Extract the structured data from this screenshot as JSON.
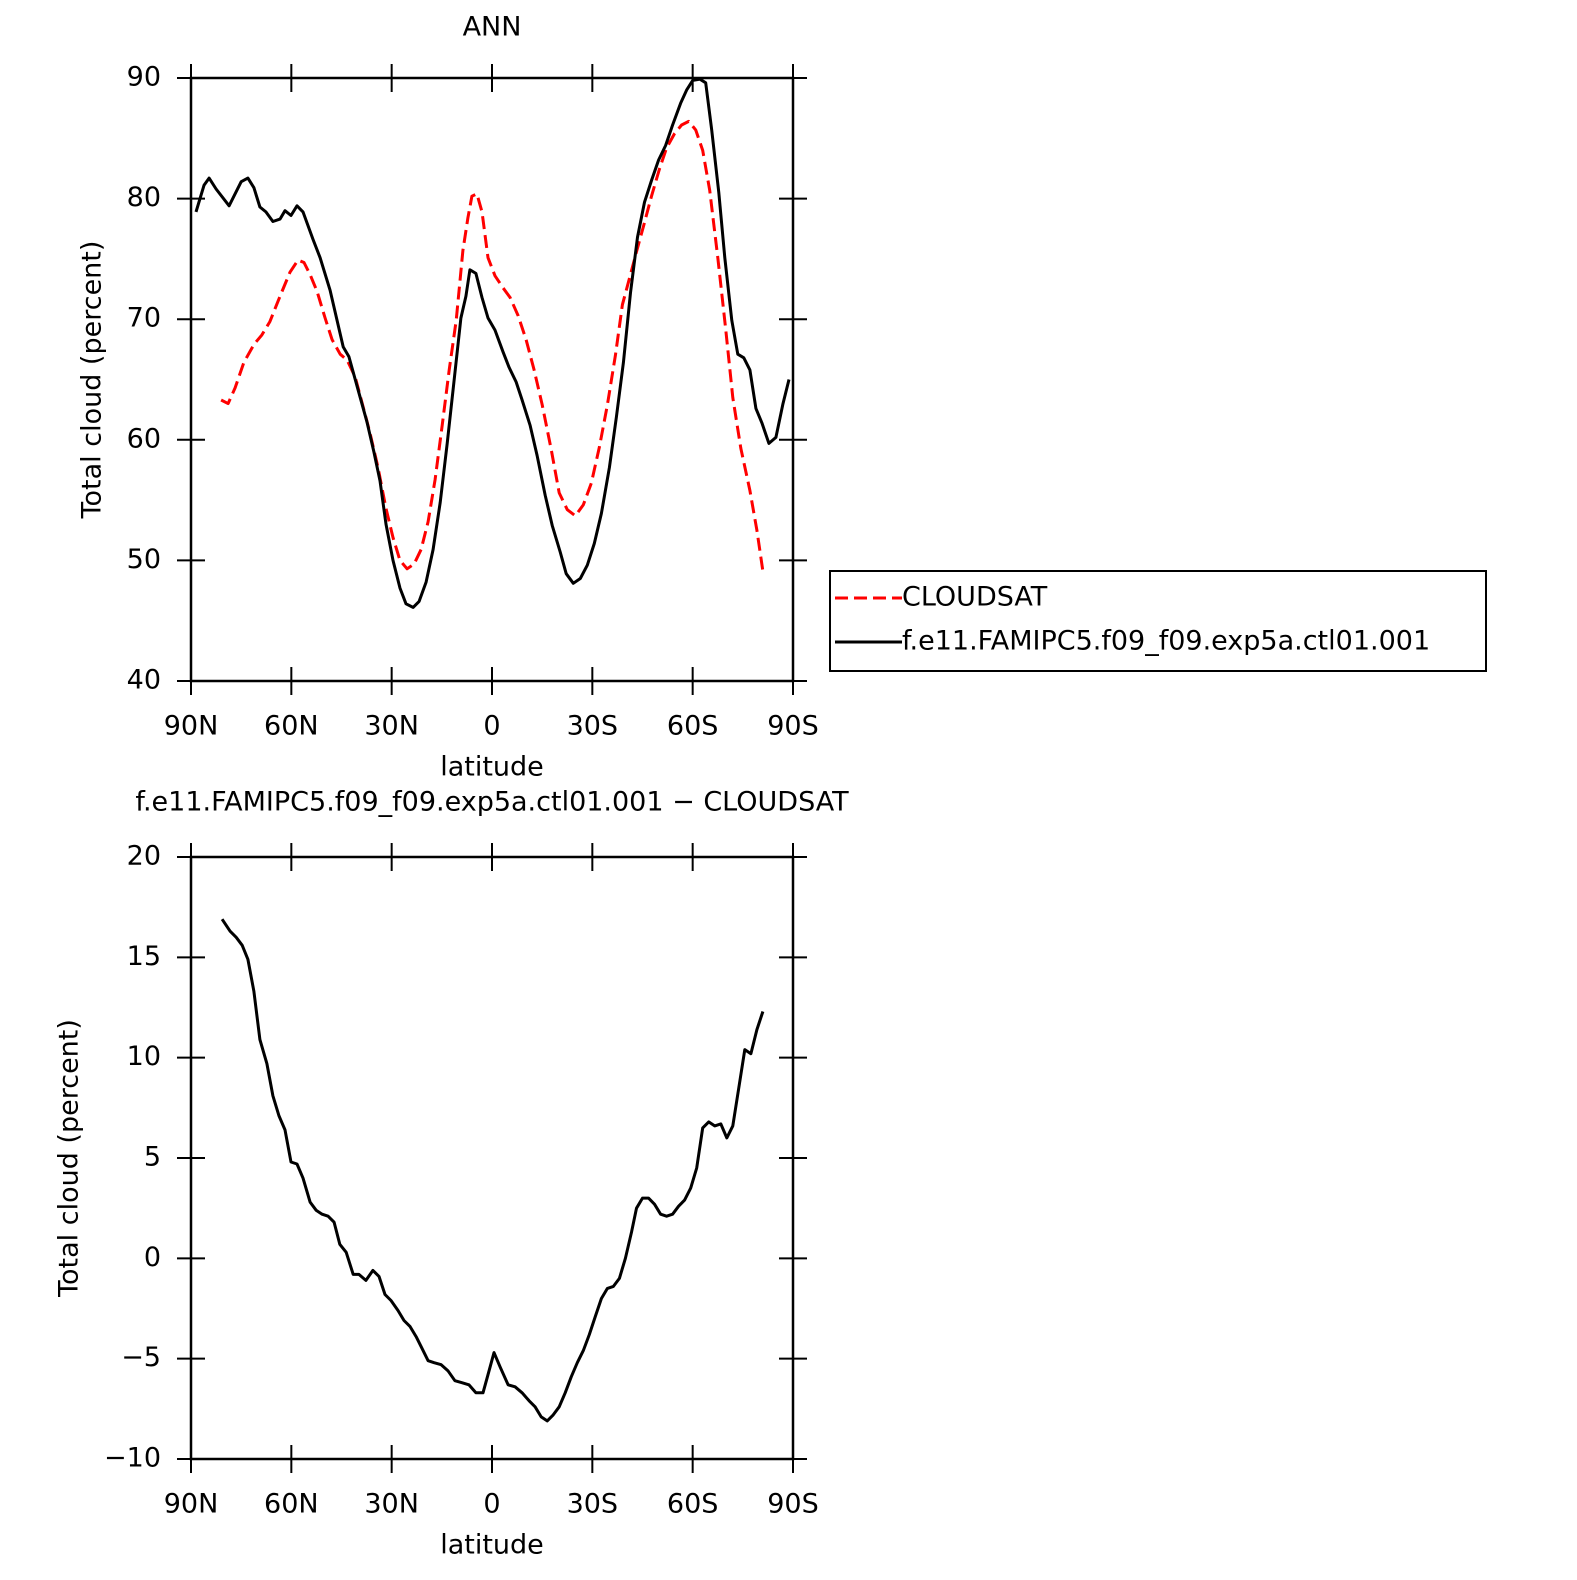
{
  "chart_data": [
    {
      "type": "line",
      "title": "ANN",
      "ylabel": "Total cloud (percent)",
      "xlabel": "latitude",
      "xlim": [
        90,
        -90
      ],
      "xticks": [
        {
          "value": 90,
          "label": "90N"
        },
        {
          "value": 60,
          "label": "60N"
        },
        {
          "value": 30,
          "label": "30N"
        },
        0,
        {
          "value": -30,
          "label": "30S"
        },
        {
          "value": -60,
          "label": "60S"
        },
        {
          "value": -90,
          "label": "90S"
        }
      ],
      "ylim": [
        40,
        90
      ],
      "yticks": [
        40,
        50,
        60,
        70,
        80,
        90
      ],
      "legend": "right",
      "series": [
        {
          "name": "CLOUDSAT",
          "color": "#ff0000",
          "line_style": "dashed",
          "x": [
            81.0,
            78.9,
            76.8,
            74.2,
            71.2,
            68.8,
            66.4,
            63.4,
            60.4,
            58.0,
            56.2,
            54.4,
            52.3,
            49.9,
            47.8,
            45.4,
            43.3,
            40.9,
            38.6,
            36.5,
            34.1,
            31.7,
            29.6,
            27.5,
            25.4,
            23.3,
            21.2,
            19.1,
            17.0,
            14.9,
            12.8,
            10.7,
            8.7,
            7.2,
            6.0,
            4.5,
            3.0,
            1.2,
            -0.9,
            -3.3,
            -5.4,
            -7.8,
            -10.2,
            -12.6,
            -15.0,
            -17.7,
            -20.1,
            -22.5,
            -24.9,
            -27.3,
            -29.7,
            -32.1,
            -34.5,
            -36.9,
            -39.0,
            -41.1,
            -43.2,
            -45.4,
            -47.7,
            -50.1,
            -52.2,
            -54.6,
            -56.7,
            -58.8,
            -60.9,
            -63.0,
            -65.1,
            -67.5,
            -69.9,
            -72.0,
            -74.4,
            -77.1,
            -79.2,
            -81.0
          ],
          "values": [
            63.3,
            63.0,
            64.3,
            66.4,
            67.9,
            68.7,
            69.8,
            71.9,
            73.9,
            74.9,
            74.7,
            73.7,
            72.3,
            70.1,
            68.3,
            67.1,
            66.6,
            65.2,
            62.8,
            60.6,
            57.7,
            54.3,
            51.9,
            50.0,
            49.3,
            49.7,
            50.9,
            53.2,
            56.7,
            61.2,
            65.8,
            69.9,
            75.7,
            78.4,
            80.2,
            80.4,
            78.9,
            75.1,
            73.6,
            72.6,
            71.8,
            70.3,
            68.3,
            65.8,
            62.9,
            59.2,
            55.6,
            54.2,
            53.7,
            54.6,
            56.4,
            59.4,
            62.9,
            67.0,
            71.2,
            73.4,
            75.6,
            77.8,
            80.2,
            82.5,
            84.2,
            85.4,
            86.1,
            86.4,
            85.7,
            84.0,
            80.7,
            75.1,
            69.1,
            63.5,
            59.3,
            55.8,
            52.5,
            49.1
          ]
        },
        {
          "name": "f.e11.FAMIPC5.f09_f09.exp5a.ctl01.001",
          "color": "#000000",
          "line_style": "solid",
          "x": [
            88.5,
            86.1,
            84.6,
            82.5,
            78.6,
            75.0,
            73.0,
            71.2,
            69.4,
            67.6,
            65.5,
            63.4,
            61.9,
            60.1,
            58.3,
            56.5,
            53.5,
            51.4,
            48.4,
            44.5,
            42.8,
            39.8,
            37.4,
            35.3,
            33.5,
            31.7,
            29.6,
            27.5,
            25.7,
            23.6,
            21.8,
            19.7,
            17.6,
            15.5,
            13.4,
            11.3,
            9.3,
            7.8,
            6.6,
            4.8,
            3.0,
            1.2,
            -0.9,
            -3.3,
            -5.1,
            -7.2,
            -9.0,
            -11.4,
            -13.5,
            -15.9,
            -18.0,
            -20.4,
            -22.2,
            -24.3,
            -26.4,
            -28.5,
            -30.6,
            -32.7,
            -35.1,
            -37.2,
            -39.3,
            -41.4,
            -43.5,
            -45.6,
            -47.7,
            -49.8,
            -51.9,
            -54.0,
            -56.4,
            -58.2,
            -60.0,
            -62.2,
            -63.9,
            -65.7,
            -67.8,
            -69.6,
            -71.7,
            -73.5,
            -75.3,
            -77.1,
            -78.9,
            -80.7,
            -82.8,
            -84.9,
            -87.0,
            -88.8
          ],
          "values": [
            78.9,
            81.1,
            81.7,
            80.8,
            79.4,
            81.4,
            81.7,
            80.9,
            79.3,
            78.9,
            78.1,
            78.3,
            79.0,
            78.6,
            79.4,
            78.9,
            76.6,
            75.1,
            72.4,
            67.7,
            66.9,
            63.9,
            61.5,
            59.0,
            56.6,
            53.0,
            50.0,
            47.7,
            46.4,
            46.1,
            46.6,
            48.2,
            50.9,
            54.8,
            59.7,
            65.0,
            70.1,
            71.9,
            74.1,
            73.8,
            71.8,
            70.1,
            69.1,
            67.3,
            66.0,
            64.8,
            63.3,
            61.2,
            58.7,
            55.4,
            52.9,
            50.7,
            48.9,
            48.1,
            48.5,
            49.6,
            51.4,
            53.9,
            57.7,
            61.9,
            66.4,
            72.2,
            76.8,
            79.7,
            81.5,
            83.2,
            84.4,
            86.1,
            87.9,
            89.0,
            89.8,
            89.9,
            89.6,
            85.7,
            80.5,
            75.1,
            69.9,
            67.1,
            66.8,
            65.8,
            62.6,
            61.4,
            59.7,
            60.2,
            63.0,
            65.0
          ]
        }
      ]
    },
    {
      "type": "line",
      "title": "f.e11.FAMIPC5.f09_f09.exp5a.ctl01.001 − CLOUDSAT",
      "ylabel": "Total cloud (percent)",
      "xlabel": "latitude",
      "xlim": [
        90,
        -90
      ],
      "xticks": [
        {
          "value": 90,
          "label": "90N"
        },
        {
          "value": 60,
          "label": "60N"
        },
        {
          "value": 30,
          "label": "30N"
        },
        0,
        {
          "value": -30,
          "label": "30S"
        },
        {
          "value": -60,
          "label": "60S"
        },
        {
          "value": -90,
          "label": "90S"
        }
      ],
      "ylim": [
        -10,
        20
      ],
      "yticks": [
        {
          "value": -10,
          "label": "−10"
        },
        {
          "value": -5,
          "label": "−5"
        },
        0,
        5,
        10,
        15,
        20
      ],
      "series": [
        {
          "color": "#000000",
          "line_style": "solid",
          "x": [
            80.7,
            78.3,
            76.5,
            74.7,
            73.0,
            71.2,
            69.4,
            67.3,
            65.5,
            63.7,
            61.9,
            60.1,
            58.3,
            56.5,
            54.4,
            52.6,
            50.8,
            49.0,
            47.2,
            45.5,
            43.6,
            41.5,
            39.8,
            37.7,
            35.6,
            33.8,
            32.0,
            30.2,
            28.1,
            26.3,
            24.5,
            22.7,
            20.9,
            19.1,
            17.3,
            15.2,
            13.2,
            11.1,
            9.0,
            6.9,
            4.8,
            2.7,
            1.2,
            -0.6,
            -2.4,
            -4.8,
            -6.9,
            -9.0,
            -11.1,
            -12.9,
            -14.7,
            -16.5,
            -18.3,
            -20.1,
            -21.9,
            -23.7,
            -25.5,
            -27.3,
            -29.1,
            -30.9,
            -32.7,
            -34.5,
            -36.3,
            -38.1,
            -39.9,
            -41.7,
            -43.2,
            -45.0,
            -46.8,
            -48.6,
            -50.4,
            -52.2,
            -54.0,
            -55.8,
            -57.6,
            -59.4,
            -61.2,
            -63.0,
            -64.8,
            -66.6,
            -68.4,
            -70.2,
            -72.0,
            -73.8,
            -75.6,
            -77.4,
            -79.2,
            -81.0
          ],
          "values": [
            16.9,
            16.3,
            16.0,
            15.6,
            14.9,
            13.3,
            10.9,
            9.7,
            8.1,
            7.1,
            6.4,
            4.8,
            4.7,
            4.0,
            2.8,
            2.4,
            2.2,
            2.1,
            1.8,
            0.7,
            0.3,
            -0.8,
            -0.8,
            -1.1,
            -0.6,
            -0.9,
            -1.8,
            -2.1,
            -2.6,
            -3.1,
            -3.4,
            -3.9,
            -4.5,
            -5.1,
            -5.2,
            -5.3,
            -5.6,
            -6.1,
            -6.2,
            -6.3,
            -6.7,
            -6.7,
            -5.8,
            -4.7,
            -5.4,
            -6.3,
            -6.4,
            -6.7,
            -7.1,
            -7.4,
            -7.9,
            -8.1,
            -7.8,
            -7.4,
            -6.7,
            -5.9,
            -5.2,
            -4.6,
            -3.8,
            -2.9,
            -2.0,
            -1.5,
            -1.4,
            -1.0,
            0.0,
            1.3,
            2.5,
            3.0,
            3.0,
            2.7,
            2.2,
            2.1,
            2.2,
            2.6,
            2.9,
            3.5,
            4.5,
            6.5,
            6.8,
            6.6,
            6.7,
            6.0,
            6.6,
            8.5,
            10.4,
            10.2,
            11.4,
            12.3
          ]
        }
      ]
    }
  ]
}
